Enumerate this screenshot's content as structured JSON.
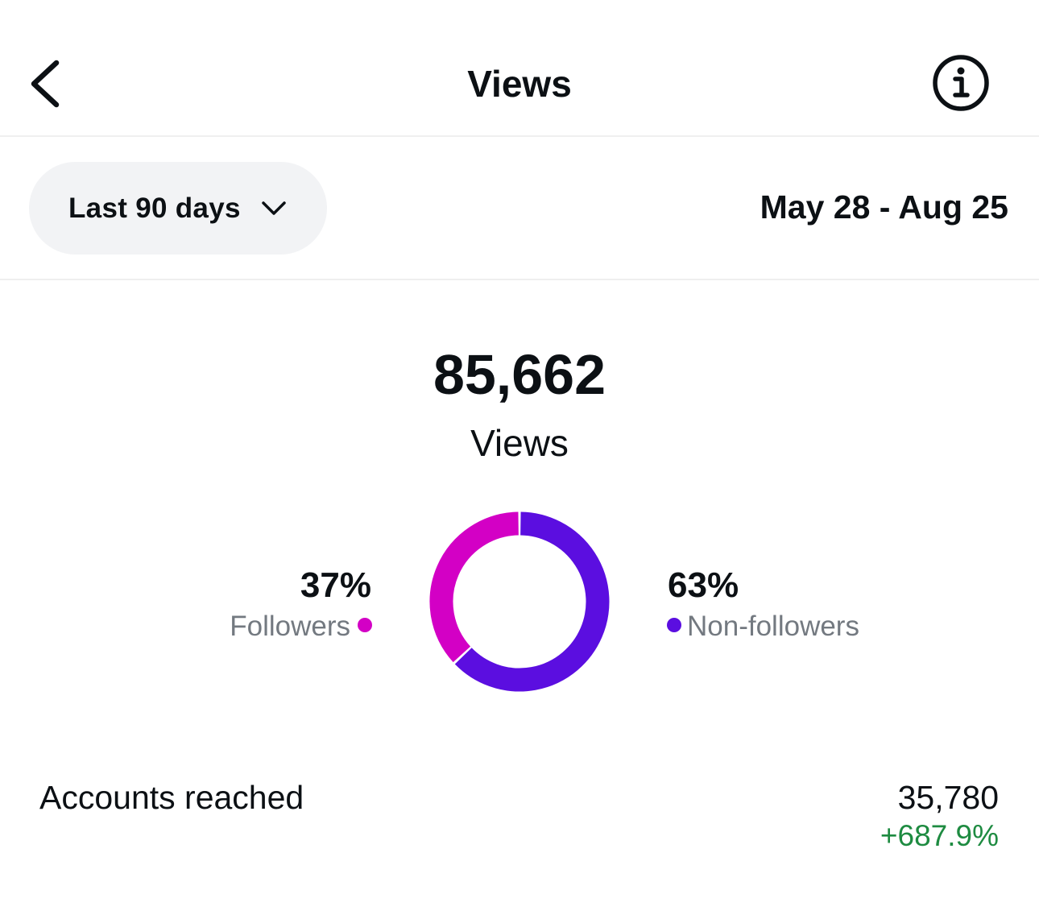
{
  "header": {
    "title": "Views",
    "back_icon": "chevron-left-icon",
    "info_icon": "info-icon"
  },
  "filter": {
    "selected_range": "Last 90 days",
    "dropdown_icon": "chevron-down-icon",
    "date_range": "May 28 - Aug 25"
  },
  "summary": {
    "total": "85,662",
    "label": "Views"
  },
  "chart_data": {
    "type": "pie",
    "donut": true,
    "categories": [
      "Followers",
      "Non-followers"
    ],
    "values": [
      37,
      63
    ],
    "value_labels": [
      "37%",
      "63%"
    ],
    "colors": [
      "#d300c5",
      "#5b0ee0"
    ]
  },
  "metrics": [
    {
      "label": "Accounts reached",
      "value": "35,780",
      "change": "+687.9%",
      "change_color": "#1e8b41"
    }
  ]
}
